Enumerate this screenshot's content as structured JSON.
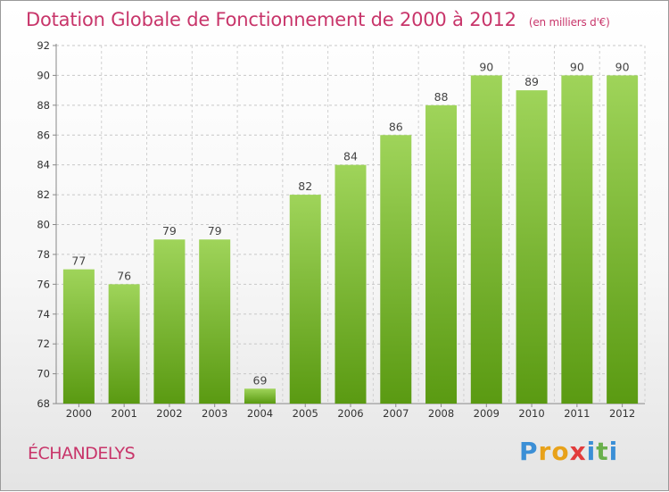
{
  "title": "Dotation Globale de Fonctionnement de 2000 à 2012",
  "unit_note": "(en milliers d'€)",
  "commune": "ÉCHANDELYS",
  "logo": {
    "letters": [
      "P",
      "r",
      "o",
      "x",
      "i",
      "t",
      "i"
    ],
    "colors": [
      "#3b8fd6",
      "#e8a21a",
      "#e8a21a",
      "#e23c3c",
      "#3b8fd6",
      "#6ab04c",
      "#3b8fd6"
    ]
  },
  "colors": {
    "bar_top": "#9fd45a",
    "bar_bottom": "#5a9a12",
    "title": "#c8356a"
  },
  "chart_data": {
    "type": "bar",
    "categories": [
      "2000",
      "2001",
      "2002",
      "2003",
      "2004",
      "2005",
      "2006",
      "2007",
      "2008",
      "2009",
      "2010",
      "2011",
      "2012"
    ],
    "values": [
      77,
      76,
      79,
      79,
      69,
      82,
      84,
      86,
      88,
      90,
      89,
      90,
      90
    ],
    "ylim": [
      68,
      92
    ],
    "yticks": [
      68,
      70,
      72,
      74,
      76,
      78,
      80,
      82,
      84,
      86,
      88,
      90,
      92
    ],
    "grid": true,
    "data_labels": true
  }
}
